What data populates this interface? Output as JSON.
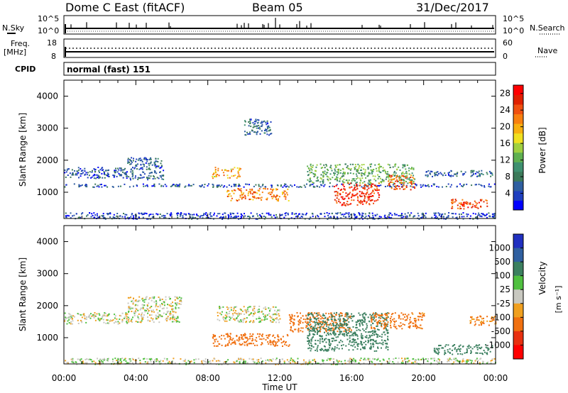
{
  "header": {
    "station": "Dome C East (fitACF)",
    "beam": "Beam 05",
    "date": "31/Dec/2017"
  },
  "strip_labels": {
    "nsky": "N.Sky",
    "freq": "Freq.",
    "freq_unit": "[MHz]",
    "cpid": "CPID",
    "nsearch": "N.Search",
    "nave": "Nave",
    "cpid_value": "normal (fast) 151",
    "noise_ticks": [
      "10^5",
      "10^0"
    ],
    "freq_ticks": [
      "18",
      "8"
    ],
    "nave_ticks": [
      "60",
      "0"
    ]
  },
  "panels": {
    "power": {
      "ylabel": "Slant Range [km]",
      "cbar_label": "Power [dB]"
    },
    "velocity": {
      "ylabel": "Slant Range [km]",
      "cbar_label": "Velocity",
      "cbar_unit": "[m s⁻¹]"
    }
  },
  "xaxis": {
    "label": "Time UT"
  },
  "chart_data": [
    {
      "type": "heatmap",
      "name": "power",
      "x_range_hours": [
        0,
        24
      ],
      "y_range_km": [
        180,
        4500
      ],
      "xticks": [
        "00:00",
        "04:00",
        "08:00",
        "12:00",
        "16:00",
        "20:00",
        "00:00"
      ],
      "yticks": [
        1000,
        2000,
        3000,
        4000
      ],
      "ylabel": "Slant Range [km]",
      "colorbar": {
        "label": "Power [dB]",
        "ticks": [
          "4",
          "8",
          "12",
          "16",
          "20",
          "24",
          "28"
        ],
        "range": [
          0,
          30
        ],
        "colors": [
          "#0000ff",
          "#1f3fbf",
          "#2f5fa0",
          "#3c7a5a",
          "#3f9070",
          "#5fb050",
          "#a0d040",
          "#f0e020",
          "#f8b010",
          "#f88010",
          "#f05010",
          "#e02000",
          "#ff0000"
        ]
      },
      "echo_regions": [
        {
          "t": [
            0.0,
            3.5
          ],
          "r": [
            1450,
            1800
          ],
          "db": 5
        },
        {
          "t": [
            3.5,
            5.5
          ],
          "r": [
            1400,
            2100
          ],
          "db": 6
        },
        {
          "t": [
            0.0,
            24.0
          ],
          "r": [
            180,
            380
          ],
          "db": 4
        },
        {
          "t": [
            0.0,
            24.0
          ],
          "r": [
            1180,
            1280
          ],
          "db": 5
        },
        {
          "t": [
            8.2,
            9.8
          ],
          "r": [
            1450,
            1800
          ],
          "db": 20
        },
        {
          "t": [
            9.0,
            12.5
          ],
          "r": [
            750,
            1150
          ],
          "db": 22
        },
        {
          "t": [
            10.0,
            11.5
          ],
          "r": [
            2800,
            3300
          ],
          "db": 6
        },
        {
          "t": [
            13.5,
            19.5
          ],
          "r": [
            1300,
            1900
          ],
          "db": 12
        },
        {
          "t": [
            15.0,
            17.5
          ],
          "r": [
            600,
            1300
          ],
          "db": 26
        },
        {
          "t": [
            18.0,
            19.5
          ],
          "r": [
            1100,
            1550
          ],
          "db": 24
        },
        {
          "t": [
            21.5,
            23.6
          ],
          "r": [
            500,
            800
          ],
          "db": 25
        },
        {
          "t": [
            20.0,
            23.8
          ],
          "r": [
            1500,
            1700
          ],
          "db": 6
        }
      ]
    },
    {
      "type": "heatmap",
      "name": "velocity",
      "x_range_hours": [
        0,
        24
      ],
      "y_range_km": [
        180,
        4500
      ],
      "xticks": [
        "00:00",
        "04:00",
        "08:00",
        "12:00",
        "16:00",
        "20:00",
        "00:00"
      ],
      "yticks": [
        1000,
        2000,
        3000,
        4000
      ],
      "ylabel": "Slant Range [km]",
      "xlabel": "Time UT",
      "colorbar": {
        "label": "Velocity [m s⁻¹]",
        "ticks": [
          "1000",
          "500",
          "100",
          "25",
          "-25",
          "-100",
          "-500",
          "-1000"
        ],
        "colors": [
          "#2030c0",
          "#3060a0",
          "#3c8060",
          "#50c040",
          "#c8c8c0",
          "#f0a020",
          "#f07010",
          "#e83010",
          "#ff0000"
        ]
      },
      "echo_regions": [
        {
          "t": [
            0.0,
            3.5
          ],
          "r": [
            1450,
            1800
          ],
          "v": 0
        },
        {
          "t": [
            3.5,
            6.5
          ],
          "r": [
            1500,
            2300
          ],
          "v": 0
        },
        {
          "t": [
            0.0,
            24.0
          ],
          "r": [
            180,
            380
          ],
          "v": 10
        },
        {
          "t": [
            8.2,
            12.5
          ],
          "r": [
            750,
            1150
          ],
          "v": -300
        },
        {
          "t": [
            8.5,
            12.0
          ],
          "r": [
            1500,
            2000
          ],
          "v": 0
        },
        {
          "t": [
            12.5,
            16.0
          ],
          "r": [
            1200,
            1800
          ],
          "v": -200
        },
        {
          "t": [
            13.5,
            18.0
          ],
          "r": [
            600,
            1800
          ],
          "v": 300
        },
        {
          "t": [
            17.0,
            20.0
          ],
          "r": [
            1300,
            1800
          ],
          "v": -150
        },
        {
          "t": [
            20.5,
            23.8
          ],
          "r": [
            500,
            800
          ],
          "v": 300
        },
        {
          "t": [
            22.5,
            24.0
          ],
          "r": [
            1400,
            1700
          ],
          "v": -100
        }
      ]
    }
  ]
}
